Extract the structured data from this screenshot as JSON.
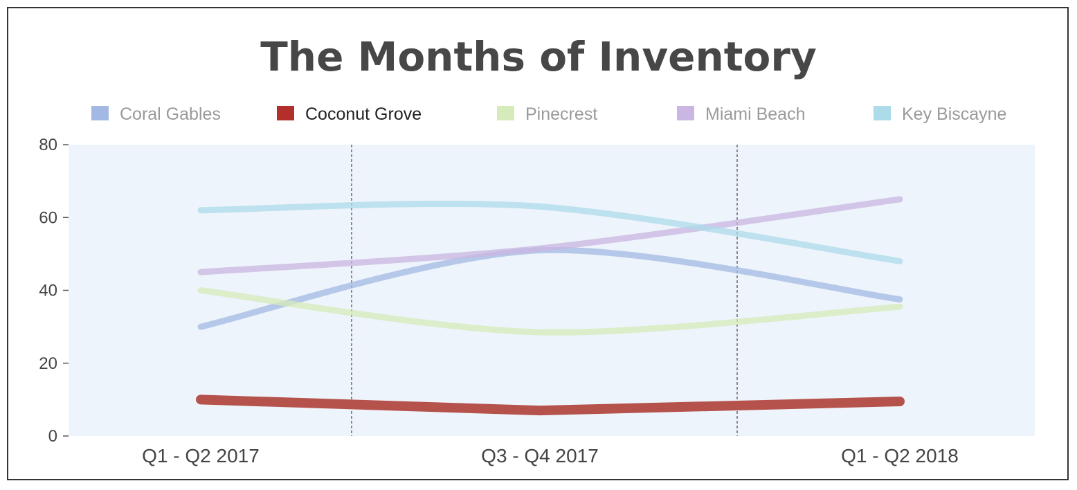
{
  "chart_data": {
    "type": "line",
    "title": "The Months of Inventory",
    "categories": [
      "Q1 - Q2 2017",
      "Q3 - Q4 2017",
      "Q1 - Q2 2018"
    ],
    "ylim": [
      0,
      80
    ],
    "yticks": [
      0,
      20,
      40,
      60,
      80
    ],
    "grid": false,
    "legend_position": "top",
    "plot_background": "#eef4fb",
    "highlighted_series": "Coconut Grove",
    "series": [
      {
        "name": "Coral Gables",
        "color": "#a3b9e3",
        "values": [
          30,
          51,
          37.5
        ]
      },
      {
        "name": "Coconut Grove",
        "color": "#b3302a",
        "values": [
          10,
          7,
          9.5
        ]
      },
      {
        "name": "Pinecrest",
        "color": "#d5ebb9",
        "values": [
          40,
          28.5,
          35.5
        ]
      },
      {
        "name": "Miami Beach",
        "color": "#c9b6e2",
        "values": [
          45,
          51.5,
          65
        ]
      },
      {
        "name": "Key Biscayne",
        "color": "#acdbe9",
        "values": [
          62,
          63,
          48
        ]
      }
    ]
  }
}
